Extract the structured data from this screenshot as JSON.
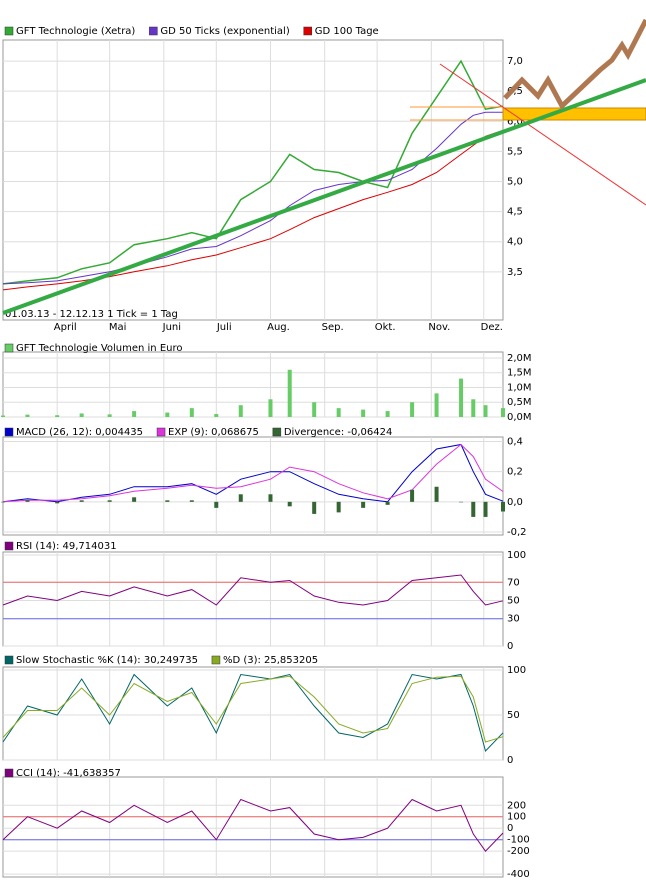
{
  "chart_data": [
    {
      "type": "line",
      "note": "01.03.13 - 12.12.13   1 Tick = 1 Tag",
      "x": [
        "2013-03-01",
        "2013-03-15",
        "2013-04-01",
        "2013-04-15",
        "2013-05-01",
        "2013-05-15",
        "2013-06-03",
        "2013-06-17",
        "2013-07-01",
        "2013-07-15",
        "2013-08-01",
        "2013-08-12",
        "2013-08-26",
        "2013-09-09",
        "2013-09-23",
        "2013-10-07",
        "2013-10-21",
        "2013-11-04",
        "2013-11-18",
        "2013-11-25",
        "2013-12-02",
        "2013-12-12"
      ],
      "xlim": [
        "2013-03-01",
        "2013-12-12"
      ],
      "xticks": [
        {
          "value": "2013-04-01",
          "label": "April"
        },
        {
          "value": "2013-05-01",
          "label": "Mai"
        },
        {
          "value": "2013-06-01",
          "label": "Juni"
        },
        {
          "value": "2013-07-01",
          "label": "Juli"
        },
        {
          "value": "2013-08-01",
          "label": "Aug."
        },
        {
          "value": "2013-09-01",
          "label": "Sep."
        },
        {
          "value": "2013-10-01",
          "label": "Okt."
        },
        {
          "value": "2013-11-01",
          "label": "Nov."
        },
        {
          "value": "2013-12-01",
          "label": "Dez."
        }
      ],
      "ylim": [
        2.7,
        7.35
      ],
      "yticks": [
        {
          "value": 3.5,
          "label": "3,5"
        },
        {
          "value": 4,
          "label": "4,0"
        },
        {
          "value": 4.5,
          "label": "4,5"
        },
        {
          "value": 5,
          "label": "5,0"
        },
        {
          "value": 5.5,
          "label": "5,5"
        },
        {
          "value": 6,
          "label": "6,0"
        },
        {
          "value": 6.5,
          "label": "6,5"
        },
        {
          "value": 7,
          "label": "7,0"
        }
      ],
      "grid": true,
      "series": [
        {
          "name": "GFT Technologie (Xetra)",
          "color": "#33aa33",
          "values": [
            3.3,
            3.35,
            3.4,
            3.55,
            3.65,
            3.95,
            4.05,
            4.15,
            4.05,
            4.7,
            5.0,
            5.45,
            5.2,
            5.15,
            5.0,
            4.9,
            5.8,
            6.4,
            7.0,
            6.6,
            6.2,
            6.25
          ]
        },
        {
          "name": "GD 50 Ticks (exponential)",
          "color": "#6633cc",
          "values": [
            3.3,
            3.32,
            3.35,
            3.42,
            3.5,
            3.6,
            3.75,
            3.88,
            3.92,
            4.1,
            4.35,
            4.6,
            4.85,
            4.95,
            5.0,
            5.02,
            5.2,
            5.55,
            5.95,
            6.1,
            6.15,
            6.15
          ]
        },
        {
          "name": "GD 100 Tage",
          "color": "#dd0000",
          "values": [
            3.2,
            3.25,
            3.3,
            3.35,
            3.42,
            3.5,
            3.6,
            3.7,
            3.78,
            3.9,
            4.05,
            4.2,
            4.4,
            4.55,
            4.7,
            4.82,
            4.95,
            5.15,
            5.45,
            5.6,
            5.75,
            5.85
          ]
        }
      ]
    },
    {
      "type": "bar",
      "x": [
        "2013-03-01",
        "2013-03-15",
        "2013-04-01",
        "2013-04-15",
        "2013-05-01",
        "2013-05-15",
        "2013-06-03",
        "2013-06-17",
        "2013-07-01",
        "2013-07-15",
        "2013-08-01",
        "2013-08-12",
        "2013-08-26",
        "2013-09-09",
        "2013-09-23",
        "2013-10-07",
        "2013-10-21",
        "2013-11-04",
        "2013-11-18",
        "2013-11-25",
        "2013-12-02",
        "2013-12-12"
      ],
      "ylim": [
        0,
        2100000
      ],
      "yticks": [
        {
          "value": 0,
          "label": "0,0M"
        },
        {
          "value": 500000,
          "label": "0,5M"
        },
        {
          "value": 1000000,
          "label": "1,0M"
        },
        {
          "value": 1500000,
          "label": "1,5M"
        },
        {
          "value": 2000000,
          "label": "2,0M"
        }
      ],
      "grid": true,
      "series": [
        {
          "name": "GFT Technologie Volumen in Euro",
          "color": "#66cc66",
          "values": [
            50000,
            80000,
            60000,
            120000,
            90000,
            200000,
            150000,
            300000,
            100000,
            400000,
            600000,
            1600000,
            500000,
            300000,
            250000,
            200000,
            500000,
            800000,
            1300000,
            600000,
            400000,
            300000
          ]
        }
      ]
    },
    {
      "type": "line",
      "x": [
        "2013-03-01",
        "2013-03-15",
        "2013-04-01",
        "2013-04-15",
        "2013-05-01",
        "2013-05-15",
        "2013-06-03",
        "2013-06-17",
        "2013-07-01",
        "2013-07-15",
        "2013-08-01",
        "2013-08-12",
        "2013-08-26",
        "2013-09-09",
        "2013-09-23",
        "2013-10-07",
        "2013-10-21",
        "2013-11-04",
        "2013-11-18",
        "2013-11-25",
        "2013-12-02",
        "2013-12-12"
      ],
      "ylim": [
        -0.22,
        0.41
      ],
      "yticks": [
        {
          "value": -0.2,
          "label": "-0,2"
        },
        {
          "value": 0,
          "label": "0,0"
        },
        {
          "value": 0.2,
          "label": "0,2"
        },
        {
          "value": 0.4,
          "label": "0,4"
        }
      ],
      "grid": true,
      "series": [
        {
          "name": "MACD (26, 12): 0,004435",
          "color": "#0000cc",
          "values": [
            0.0,
            0.02,
            0.0,
            0.03,
            0.05,
            0.1,
            0.1,
            0.12,
            0.05,
            0.15,
            0.2,
            0.2,
            0.12,
            0.05,
            0.02,
            0.0,
            0.2,
            0.35,
            0.38,
            0.2,
            0.05,
            0.004435
          ]
        },
        {
          "name": "EXP (9): 0,068675",
          "color": "#dd33dd",
          "values": [
            0.0,
            0.01,
            0.01,
            0.02,
            0.04,
            0.07,
            0.09,
            0.11,
            0.09,
            0.1,
            0.15,
            0.23,
            0.2,
            0.12,
            0.06,
            0.02,
            0.08,
            0.25,
            0.38,
            0.3,
            0.15,
            0.068675
          ]
        },
        {
          "name": "Divergence: -0,06424",
          "color": "#336633",
          "style": "bar",
          "values": [
            0,
            0.01,
            -0.01,
            0.01,
            0.01,
            0.03,
            0.01,
            0.01,
            -0.04,
            0.05,
            0.05,
            -0.03,
            -0.08,
            -0.07,
            -0.04,
            -0.02,
            0.08,
            0.1,
            0,
            -0.1,
            -0.1,
            -0.06424
          ]
        }
      ]
    },
    {
      "type": "line",
      "x": [
        "2013-03-01",
        "2013-03-15",
        "2013-04-01",
        "2013-04-15",
        "2013-05-01",
        "2013-05-15",
        "2013-06-03",
        "2013-06-17",
        "2013-07-01",
        "2013-07-15",
        "2013-08-01",
        "2013-08-12",
        "2013-08-26",
        "2013-09-09",
        "2013-09-23",
        "2013-10-07",
        "2013-10-21",
        "2013-11-04",
        "2013-11-18",
        "2013-11-25",
        "2013-12-02",
        "2013-12-12"
      ],
      "ylim": [
        0,
        100
      ],
      "yticks": [
        0,
        30,
        50,
        70,
        100
      ],
      "hlines": [
        {
          "value": 70,
          "color": "#ee6666"
        },
        {
          "value": 30,
          "color": "#6666ee"
        }
      ],
      "grid": true,
      "series": [
        {
          "name": "RSI (14): 49,714031",
          "color": "#800080",
          "values": [
            45,
            55,
            50,
            60,
            55,
            65,
            55,
            62,
            45,
            75,
            70,
            72,
            55,
            48,
            45,
            50,
            72,
            75,
            78,
            60,
            45,
            49.714031
          ]
        }
      ]
    },
    {
      "type": "line",
      "x": [
        "2013-03-01",
        "2013-03-15",
        "2013-04-01",
        "2013-04-15",
        "2013-05-01",
        "2013-05-15",
        "2013-06-03",
        "2013-06-17",
        "2013-07-01",
        "2013-07-15",
        "2013-08-01",
        "2013-08-12",
        "2013-08-26",
        "2013-09-09",
        "2013-09-23",
        "2013-10-07",
        "2013-10-21",
        "2013-11-04",
        "2013-11-18",
        "2013-11-25",
        "2013-12-02",
        "2013-12-12"
      ],
      "ylim": [
        0,
        100
      ],
      "yticks": [
        0,
        50,
        100
      ],
      "grid": true,
      "series": [
        {
          "name": "Slow Stochastic %K (14): 30,249735",
          "color": "#006666",
          "values": [
            20,
            60,
            50,
            90,
            40,
            95,
            60,
            80,
            30,
            95,
            90,
            95,
            60,
            30,
            25,
            40,
            95,
            90,
            95,
            60,
            10,
            30.249735
          ]
        },
        {
          "name": "%D (3): 25,853205",
          "color": "#88aa22",
          "values": [
            25,
            55,
            55,
            80,
            50,
            85,
            65,
            75,
            40,
            85,
            90,
            93,
            70,
            40,
            30,
            35,
            85,
            92,
            93,
            70,
            20,
            25.853205
          ]
        }
      ]
    },
    {
      "type": "line",
      "x": [
        "2013-03-01",
        "2013-03-15",
        "2013-04-01",
        "2013-04-15",
        "2013-05-01",
        "2013-05-15",
        "2013-06-03",
        "2013-06-17",
        "2013-07-01",
        "2013-07-15",
        "2013-08-01",
        "2013-08-12",
        "2013-08-26",
        "2013-09-09",
        "2013-09-23",
        "2013-10-07",
        "2013-10-21",
        "2013-11-04",
        "2013-11-18",
        "2013-11-25",
        "2013-12-02",
        "2013-12-12"
      ],
      "ylim": [
        -425,
        420
      ],
      "yticks": [
        -400,
        -200,
        -100,
        0,
        100,
        200
      ],
      "hlines": [
        {
          "value": 100,
          "color": "#ee6666"
        },
        {
          "value": -100,
          "color": "#6666ee"
        }
      ],
      "grid": true,
      "series": [
        {
          "name": "CCI (14): -41,638357",
          "color": "#800080",
          "values": [
            -100,
            100,
            0,
            150,
            50,
            200,
            50,
            150,
            -100,
            250,
            150,
            180,
            -50,
            -100,
            -80,
            0,
            250,
            150,
            200,
            -50,
            -200,
            -41.638357
          ]
        }
      ]
    }
  ]
}
